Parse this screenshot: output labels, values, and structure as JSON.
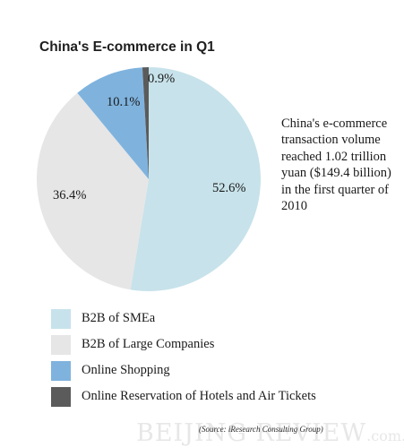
{
  "title": "China's E-commerce in Q1",
  "note": "China's e-commerce transaction volume reached 1.02 trillion yuan ($149.4 billion) in the first quarter of 2010",
  "source": "(Source: iResearch Consulting Group)",
  "watermark": {
    "main": "BEIJING REVIEW",
    "suffix": ".com.cn"
  },
  "chart_data": {
    "type": "pie",
    "title": "China's E-commerce in Q1",
    "categories": [
      "B2B of SMEa",
      "B2B of Large Companies",
      "Online Shopping",
      "Online Reservation of Hotels and Air Tickets"
    ],
    "values": [
      52.6,
      36.4,
      10.1,
      0.9
    ],
    "value_labels": [
      "52.6%",
      "36.4%",
      "10.1%",
      "0.9%"
    ],
    "colors": [
      "#c7e2ea",
      "#e6e6e6",
      "#7fb3de",
      "#5b5b5b"
    ],
    "start_angle": "12 o'clock",
    "direction": "clockwise",
    "legend_position": "bottom-left"
  }
}
